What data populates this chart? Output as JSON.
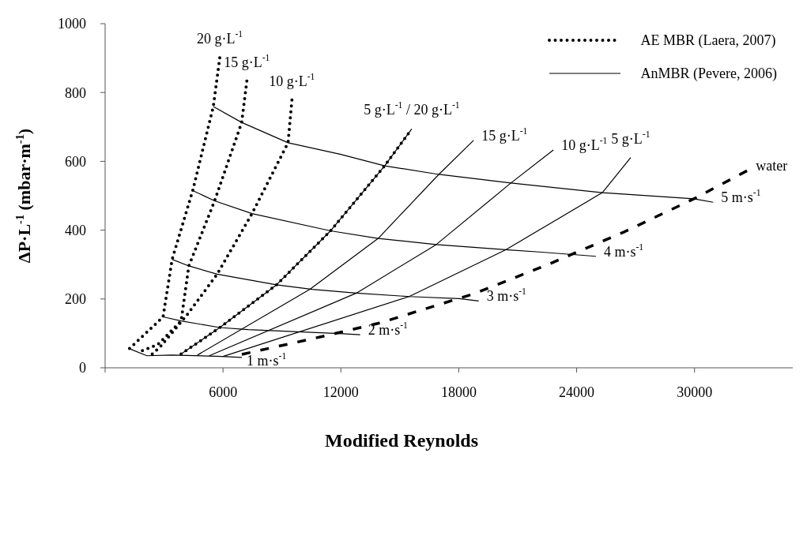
{
  "chart_data": {
    "type": "line",
    "xlabel": "Modified Reynolds",
    "ylabel": "ΔP·L$^{-1}$ (mbar·m$^{-1}$)",
    "xlim": [
      0,
      35000
    ],
    "ylim": [
      0,
      1000
    ],
    "xticks": [
      {
        "value": 0,
        "label": null
      },
      6000,
      12000,
      18000,
      24000,
      30000
    ],
    "yticks": [
      0,
      200,
      400,
      600,
      800,
      1000
    ],
    "legend": "top right",
    "series": [
      {
        "name": "AE MBR (Laera, 2007)",
        "color": "#000000",
        "line_style": "dotted",
        "x": [
          1245,
          2490,
          2950,
          3410,
          4458,
          5507,
          5835
        ],
        "values": [
          56,
          123,
          148,
          315,
          515,
          759,
          901
        ]
      },
      {
        "color": "#000000",
        "line_style": "dotted",
        "x": [
          1900,
          2687,
          3868,
          4261,
          5573,
          6950,
          7212
        ],
        "values": [
          50,
          68,
          136,
          296,
          485,
          713,
          833
        ]
      },
      {
        "color": "#000000",
        "line_style": "dotted",
        "x": [
          2400,
          2820,
          4131,
          5704,
          7475,
          9311,
          9508
        ],
        "values": [
          40,
          62,
          151,
          272,
          448,
          654,
          778
        ]
      },
      {
        "color": "#000000",
        "line_style": "dotted",
        "x": [
          3868,
          5836,
          8722,
          11475,
          14229,
          15605
        ],
        "values": [
          40,
          117,
          241,
          398,
          587,
          694
        ]
      },
      {
        "name": "AnMBR (Pevere, 2006)",
        "color": "#000000",
        "line_style": "solid",
        "x": [
          3868,
          5836,
          8722,
          11475,
          14229,
          15605
        ],
        "values": [
          40,
          117,
          241,
          398,
          587,
          694
        ]
      },
      {
        "color": "#000000",
        "line_style": "solid",
        "x": [
          4700,
          10425,
          13900,
          16983,
          18753
        ],
        "values": [
          37,
          228,
          376,
          562,
          661
        ]
      },
      {
        "color": "#000000",
        "line_style": "solid",
        "x": [
          5300,
          12786,
          16850,
          20654,
          22817
        ],
        "values": [
          35,
          217,
          358,
          537,
          633
        ]
      },
      {
        "color": "#000000",
        "line_style": "solid",
        "x": [
          6000,
          15473,
          20390,
          25308,
          26751
        ],
        "values": [
          33,
          207,
          343,
          509,
          611
        ]
      },
      {
        "color": "#000000",
        "line_style": "solid",
        "x": [
          5507,
          6950,
          9311,
          11999,
          14229,
          16983,
          20654,
          25308,
          29965,
          30948
        ],
        "values": [
          759,
          713,
          654,
          620,
          587,
          562,
          537,
          509,
          491,
          481
        ]
      },
      {
        "color": "#000000",
        "line_style": "solid",
        "x": [
          4458,
          5573,
          7475,
          11475,
          13900,
          16850,
          20390,
          22227,
          24981
        ],
        "values": [
          515,
          485,
          448,
          398,
          376,
          358,
          343,
          336,
          324
        ]
      },
      {
        "color": "#000000",
        "line_style": "solid",
        "x": [
          3410,
          4261,
          5704,
          8722,
          10543,
          12786,
          15473,
          18030,
          19015
        ],
        "values": [
          315,
          296,
          272,
          241,
          228,
          217,
          207,
          201,
          194
        ]
      },
      {
        "color": "#000000",
        "line_style": "solid",
        "x": [
          2950,
          3868,
          5836,
          7278,
          12130,
          12982
        ],
        "values": [
          148,
          136,
          117,
          111,
          99,
          96
        ]
      },
      {
        "color": "#000000",
        "line_style": "solid",
        "x": [
          1220,
          2125,
          3385,
          5940,
          6960
        ],
        "values": [
          56,
          35,
          37,
          33,
          30
        ]
      },
      {
        "color": "#000000",
        "line_style": "dashed",
        "x": [
          6960,
          11212,
          13966,
          18817,
          22620,
          26424,
          29965,
          32718
        ],
        "values": [
          39,
          93,
          130,
          216,
          302,
          395,
          491,
          574
        ]
      }
    ],
    "annotations": [
      {
        "text": "20 g·L$^{-1}$",
        "x": 5835,
        "y": 901
      },
      {
        "text": "15 g·L$^{-1}$",
        "x": 7212,
        "y": 833
      },
      {
        "text": "10 g·L$^{-1}$",
        "x": 9508,
        "y": 778
      },
      {
        "text": "5 g·L$^{-1}$ / 20 g·L$^{-1}$",
        "x": 15605,
        "y": 694
      },
      {
        "text": "15 g·L$^{-1}$",
        "x": 18753,
        "y": 661
      },
      {
        "text": "10 g·L$^{-1}$",
        "x": 22817,
        "y": 633
      },
      {
        "text": "5 g·L$^{-1}$",
        "x": 26751,
        "y": 611
      },
      {
        "text": "water",
        "x": 32718,
        "y": 574
      },
      {
        "text": "5 m·s$^{-1}$",
        "x": 30948,
        "y": 481
      },
      {
        "text": "4 m·s$^{-1}$",
        "x": 24981,
        "y": 324
      },
      {
        "text": "3 m·s$^{-1}$",
        "x": 19015,
        "y": 194
      },
      {
        "text": "2 m·s$^{-1}$",
        "x": 12982,
        "y": 96
      },
      {
        "text": "1 m·s$^{-1}$",
        "x": 6960,
        "y": 30
      }
    ]
  }
}
